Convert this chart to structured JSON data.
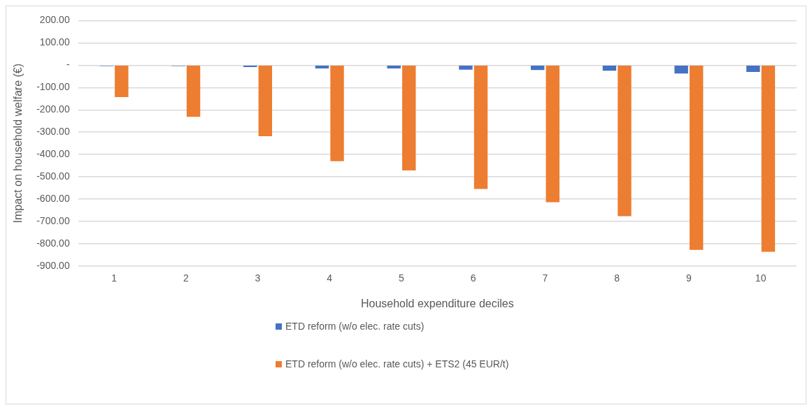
{
  "chart_data": {
    "type": "bar",
    "xlabel": "Household expenditure deciles",
    "ylabel": "Impact on household welfare (€)",
    "categories": [
      "1",
      "2",
      "3",
      "4",
      "5",
      "6",
      "7",
      "8",
      "9",
      "10"
    ],
    "series": [
      {
        "name": "ETD reform (w/o elec. rate cuts)",
        "color": "#4472c4",
        "values": [
          -4,
          -4,
          -8,
          -15,
          -15,
          -20,
          -22,
          -25,
          -37,
          -30
        ]
      },
      {
        "name": "ETD reform (w/o elec. rate cuts) + ETS2 (45 EUR/t)",
        "color": "#ed7d31",
        "values": [
          -143,
          -231,
          -318,
          -430,
          -471,
          -554,
          -614,
          -676,
          -827,
          -836
        ]
      }
    ],
    "ylim": [
      -900,
      200
    ],
    "yticks": [
      {
        "value": 200,
        "label": "200.00"
      },
      {
        "value": 100,
        "label": "100.00"
      },
      {
        "value": 0,
        "label": "-"
      },
      {
        "value": -100,
        "label": "-100.00"
      },
      {
        "value": -200,
        "label": "-200.00"
      },
      {
        "value": -300,
        "label": "-300.00"
      },
      {
        "value": -400,
        "label": "-400.00"
      },
      {
        "value": -500,
        "label": "-500.00"
      },
      {
        "value": -600,
        "label": "-600.00"
      },
      {
        "value": -700,
        "label": "-700.00"
      },
      {
        "value": -800,
        "label": "-800.00"
      },
      {
        "value": -900,
        "label": "-900.00"
      }
    ],
    "grid": "y",
    "legend": "bottom"
  }
}
